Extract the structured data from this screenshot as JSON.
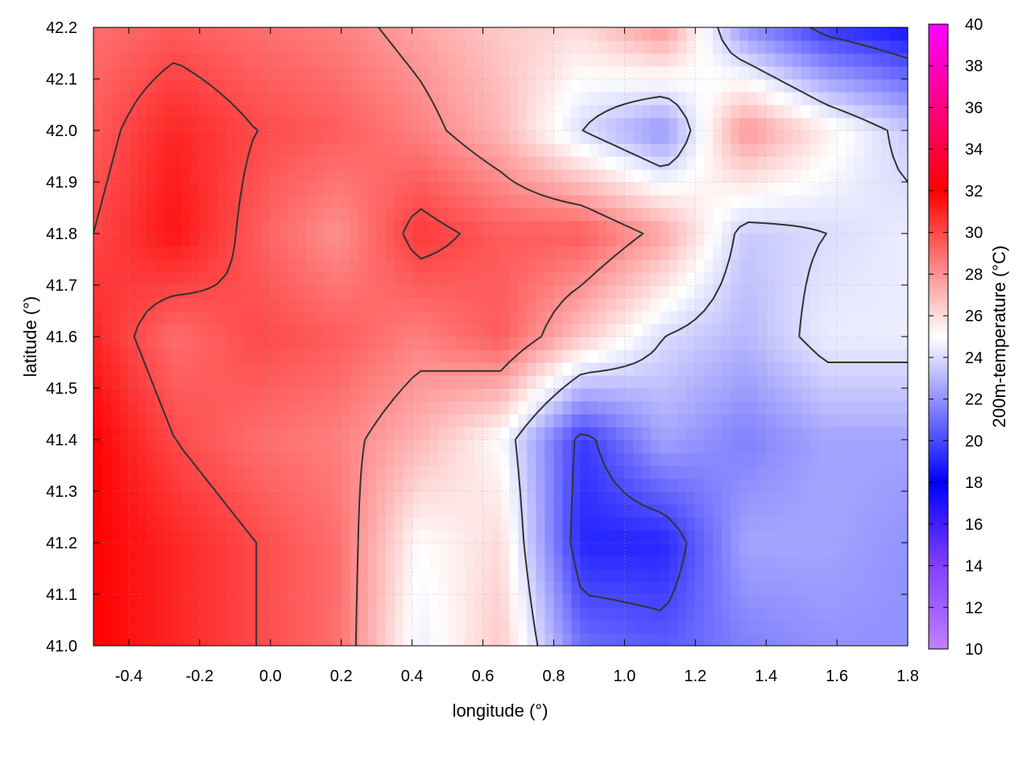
{
  "chart_data": {
    "type": "heatmap",
    "xlabel": "longitude (°)",
    "ylabel": "latitude (°)",
    "colorbar_label": "200m-temperature (°C)",
    "xlim": [
      -0.5,
      1.8
    ],
    "ylim": [
      41.0,
      42.2
    ],
    "clim": [
      10,
      40
    ],
    "x_ticks": [
      "-0.4",
      "-0.2",
      "0.0",
      "0.2",
      "0.4",
      "0.6",
      "0.8",
      "1.0",
      "1.2",
      "1.4",
      "1.6",
      "1.8"
    ],
    "y_ticks": [
      "41.0",
      "41.1",
      "41.2",
      "41.3",
      "41.4",
      "41.5",
      "41.6",
      "41.7",
      "41.8",
      "41.9",
      "42.0",
      "42.1",
      "42.2"
    ],
    "colorbar_ticks": [
      "10",
      "12",
      "14",
      "16",
      "18",
      "20",
      "22",
      "24",
      "26",
      "28",
      "30",
      "32",
      "34",
      "36",
      "38",
      "40"
    ],
    "colormap": [
      {
        "value": 10,
        "color": "#c080ff"
      },
      {
        "value": 14,
        "color": "#8040ff"
      },
      {
        "value": 18,
        "color": "#0000ff"
      },
      {
        "value": 25,
        "color": "#ffffff"
      },
      {
        "value": 32,
        "color": "#ff0000"
      },
      {
        "value": 36,
        "color": "#ff0080"
      },
      {
        "value": 40,
        "color": "#ff00ff"
      }
    ],
    "grid": true,
    "contours": true,
    "legend": "colorbar-right",
    "field": {
      "x": [
        -0.5,
        -0.27,
        -0.04,
        0.19,
        0.42,
        0.65,
        0.88,
        1.11,
        1.34,
        1.57,
        1.8
      ],
      "y": [
        41.0,
        41.2,
        41.4,
        41.6,
        41.8,
        42.0,
        42.2
      ],
      "values": [
        [
          32.0,
          31.0,
          30.0,
          29.0,
          24.5,
          26.5,
          21.0,
          20.5,
          21.5,
          22.0,
          22.0
        ],
        [
          32.0,
          31.0,
          30.0,
          29.0,
          25.0,
          26.0,
          19.0,
          19.0,
          22.5,
          22.5,
          22.0
        ],
        [
          32.0,
          30.0,
          29.0,
          28.5,
          27.0,
          25.0,
          19.5,
          22.5,
          21.5,
          22.5,
          22.5
        ],
        [
          31.0,
          29.0,
          30.0,
          29.5,
          28.5,
          29.5,
          26.5,
          24.0,
          23.0,
          24.5,
          24.5
        ],
        [
          30.0,
          31.5,
          29.5,
          28.0,
          30.5,
          29.5,
          29.5,
          27.5,
          23.5,
          24.0,
          24.5
        ],
        [
          29.5,
          31.0,
          30.0,
          29.5,
          28.5,
          27.0,
          24.0,
          22.0,
          28.0,
          25.5,
          23.5
        ],
        [
          29.0,
          29.5,
          29.0,
          28.5,
          27.5,
          26.5,
          26.0,
          28.0,
          22.0,
          19.5,
          18.5
        ]
      ]
    }
  }
}
